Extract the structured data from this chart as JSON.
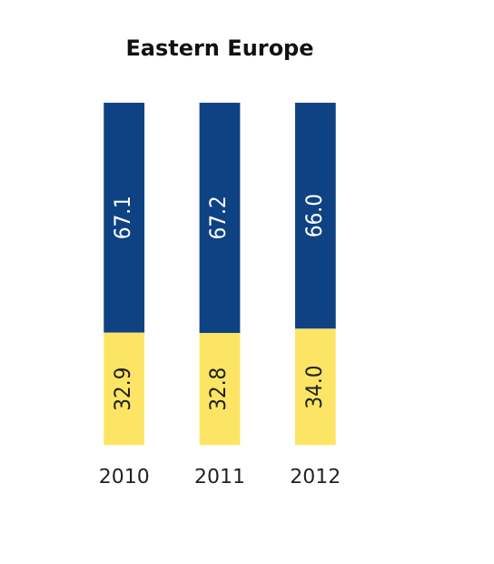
{
  "chart_data": {
    "type": "bar",
    "title": "Eastern Europe",
    "categories": [
      "2010",
      "2011",
      "2012"
    ],
    "stacked": true,
    "legend": false,
    "series": [
      {
        "color": "#fce564",
        "values": [
          32.9,
          32.8,
          34.0
        ],
        "value_labels": [
          "32.9",
          "32.8",
          "34.0"
        ]
      },
      {
        "color": "#0e4283",
        "values": [
          67.1,
          67.2,
          66.0
        ],
        "value_labels": [
          "67.1",
          "67.2",
          "66.0"
        ]
      }
    ]
  }
}
